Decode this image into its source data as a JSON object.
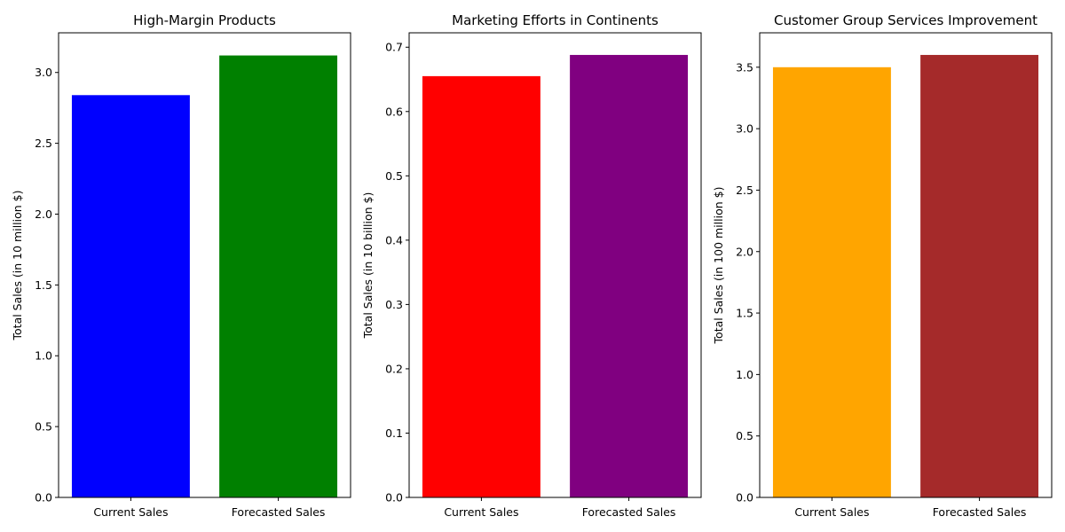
{
  "chart_data": [
    {
      "type": "bar",
      "title": "High-Margin Products",
      "xlabel": "",
      "ylabel": "Total Sales (in 10 million $)",
      "categories": [
        "Current Sales",
        "Forecasted Sales"
      ],
      "values": [
        2.84,
        3.12
      ],
      "colors": [
        "#0000ff",
        "#008000"
      ],
      "ylim": [
        0,
        3.28
      ],
      "yticks": [
        0.0,
        0.5,
        1.0,
        1.5,
        2.0,
        2.5,
        3.0
      ],
      "ytick_labels": [
        "0.0",
        "0.5",
        "1.0",
        "1.5",
        "2.0",
        "2.5",
        "3.0"
      ],
      "grid": false,
      "legend": "none"
    },
    {
      "type": "bar",
      "title": "Marketing Efforts in Continents",
      "xlabel": "",
      "ylabel": "Total Sales (in 10 billion $)",
      "categories": [
        "Current Sales",
        "Forecasted Sales"
      ],
      "values": [
        0.655,
        0.688
      ],
      "colors": [
        "#ff0000",
        "#800080"
      ],
      "ylim": [
        0,
        0.7224
      ],
      "yticks": [
        0.0,
        0.1,
        0.2,
        0.3,
        0.4,
        0.5,
        0.6,
        0.7
      ],
      "ytick_labels": [
        "0.0",
        "0.1",
        "0.2",
        "0.3",
        "0.4",
        "0.5",
        "0.6",
        "0.7"
      ],
      "grid": false,
      "legend": "none"
    },
    {
      "type": "bar",
      "title": "Customer Group Services Improvement",
      "xlabel": "",
      "ylabel": "Total Sales (in 100 million $)",
      "categories": [
        "Current Sales",
        "Forecasted Sales"
      ],
      "values": [
        3.5,
        3.6
      ],
      "colors": [
        "#ffa500",
        "#a52a2a"
      ],
      "ylim": [
        0,
        3.78
      ],
      "yticks": [
        0.0,
        0.5,
        1.0,
        1.5,
        2.0,
        2.5,
        3.0,
        3.5
      ],
      "ytick_labels": [
        "0.0",
        "0.5",
        "1.0",
        "1.5",
        "2.0",
        "2.5",
        "3.0",
        "3.5"
      ],
      "grid": false,
      "legend": "none"
    }
  ]
}
